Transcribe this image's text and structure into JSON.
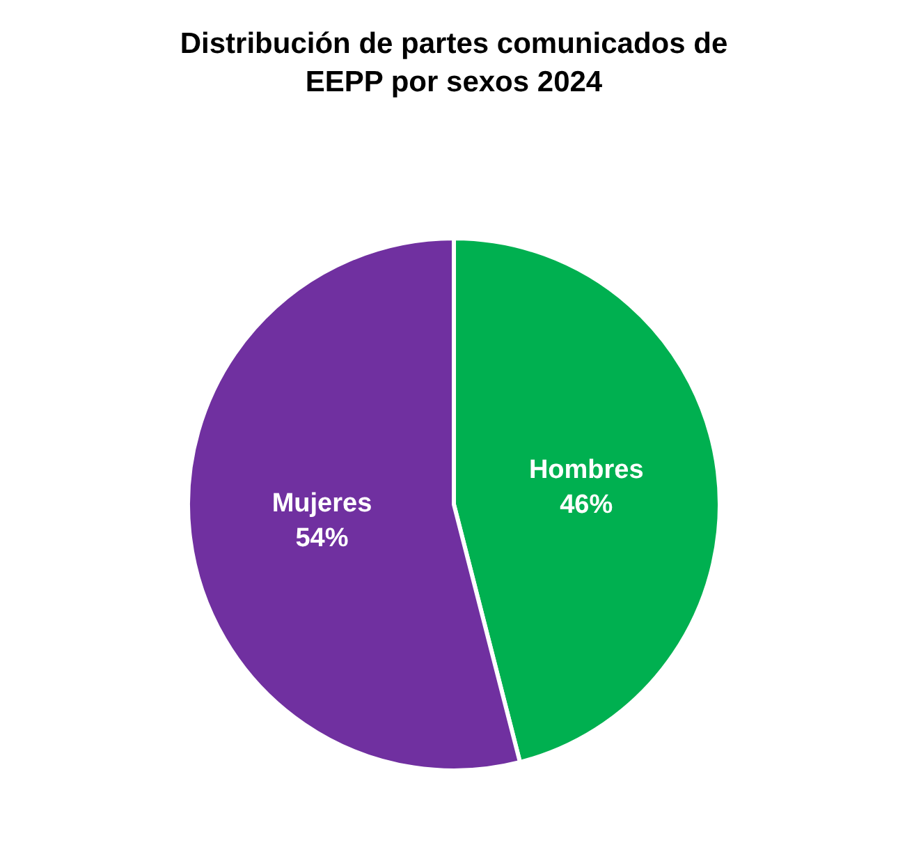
{
  "chart_data": {
    "type": "pie",
    "title": "Distribución de partes comunicados de EEPP por sexos 2024",
    "categories": [
      "Hombres",
      "Mujeres"
    ],
    "values": [
      46,
      54
    ],
    "colors": [
      "#00b050",
      "#7030a0"
    ],
    "value_labels": [
      "46%",
      "54%"
    ],
    "legend": false
  }
}
